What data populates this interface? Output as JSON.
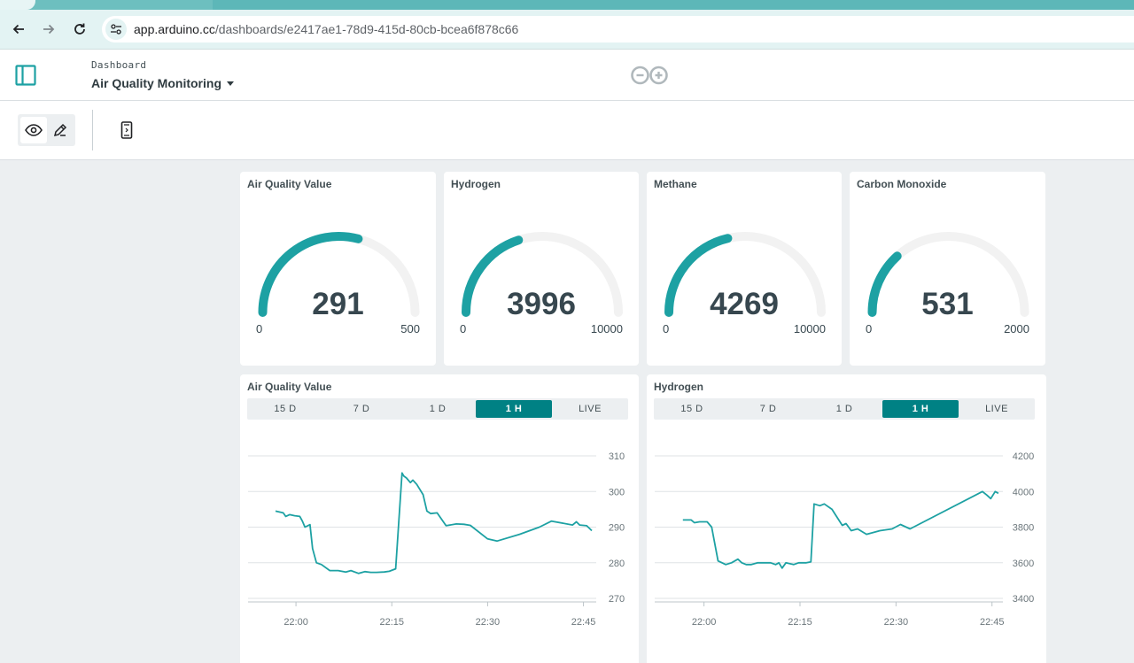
{
  "browser": {
    "url_host": "app.arduino.cc",
    "url_path": "/dashboards/e2417ae1-78d9-415d-80cb-bcea6f878c66"
  },
  "header": {
    "breadcrumb": "Dashboard",
    "title": "Air Quality Monitoring"
  },
  "colors": {
    "accent": "#1da1a3",
    "active_tab": "#008184",
    "track": "#f2f2f2"
  },
  "gauges": [
    {
      "title": "Air Quality Value",
      "value": "291",
      "min": "0",
      "max": "500",
      "numeric": 291,
      "lo": 0,
      "hi": 500
    },
    {
      "title": "Hydrogen",
      "value": "3996",
      "min": "0",
      "max": "10000",
      "numeric": 3996,
      "lo": 0,
      "hi": 10000
    },
    {
      "title": "Methane",
      "value": "4269",
      "min": "0",
      "max": "10000",
      "numeric": 4269,
      "lo": 0,
      "hi": 10000
    },
    {
      "title": "Carbon Monoxide",
      "value": "531",
      "min": "0",
      "max": "2000",
      "numeric": 531,
      "lo": 0,
      "hi": 2000
    }
  ],
  "charts": [
    {
      "title": "Air Quality Value",
      "tabs": [
        "15 D",
        "7 D",
        "1 D",
        "1 H",
        "LIVE"
      ],
      "active_tab": 3
    },
    {
      "title": "Hydrogen",
      "tabs": [
        "15 D",
        "7 D",
        "1 D",
        "1 H",
        "LIVE"
      ],
      "active_tab": 3
    }
  ],
  "chart_data": [
    {
      "type": "line",
      "title": "Air Quality Value",
      "x_ticks": [
        "22:00",
        "22:15",
        "22:30",
        "22:45"
      ],
      "x_tick_minutes": [
        0,
        15,
        30,
        45
      ],
      "y_ticks": [
        "270",
        "280",
        "290",
        "300",
        "310"
      ],
      "ylim": [
        270,
        310
      ],
      "xlim_minutes": [
        -7.5,
        47
      ],
      "grid": true,
      "series": [
        {
          "x": [
            -3.2,
            -2,
            -1.6,
            -1,
            -0.2,
            0.6,
            1,
            1.4,
            2.2,
            2.6,
            3.2,
            4,
            5.3,
            6.6,
            7.8,
            8.6,
            9.8,
            10.8,
            11.7,
            12.6,
            13.8,
            14.6,
            15.6,
            16.6,
            16.9,
            17.3,
            17.9,
            18.3,
            18.9,
            19.9,
            20.5,
            21.1,
            22.1,
            23.5,
            25.1,
            26.3,
            27.3,
            30,
            31.5,
            35,
            38.1,
            40,
            43.3,
            43.9,
            44.4,
            45.5,
            46.3
          ],
          "y": [
            294.5,
            294,
            293,
            293.5,
            293.2,
            293,
            291.7,
            290,
            290.7,
            284,
            280,
            279.5,
            277.8,
            277.8,
            277.4,
            277.8,
            277,
            277.5,
            277.3,
            277.3,
            277.4,
            277.6,
            278.3,
            305.2,
            304.3,
            303.8,
            302.5,
            303.2,
            302,
            299.1,
            294.5,
            293.8,
            294,
            290.4,
            290.9,
            290.8,
            290.5,
            286.7,
            286.1,
            288,
            290,
            291.7,
            290.6,
            291.5,
            290.6,
            290.4,
            289
          ]
        }
      ]
    },
    {
      "type": "line",
      "title": "Hydrogen",
      "x_ticks": [
        "22:00",
        "22:15",
        "22:30",
        "22:45"
      ],
      "x_tick_minutes": [
        0,
        15,
        30,
        45
      ],
      "y_ticks": [
        "3400",
        "3600",
        "3800",
        "4000",
        "4200"
      ],
      "ylim": [
        3400,
        4200
      ],
      "xlim_minutes": [
        -7.7,
        46.7
      ],
      "grid": true,
      "series": [
        {
          "x": [
            -3.3,
            -2,
            -1.5,
            -0.7,
            0.5,
            1.2,
            2.2,
            3.4,
            4.3,
            5.3,
            5.9,
            6.6,
            7.4,
            8.4,
            9.4,
            10.4,
            11.2,
            11.7,
            12.2,
            12.8,
            14,
            14.8,
            16,
            16.7,
            17.2,
            18.1,
            18.8,
            20,
            20.7,
            21.6,
            22.2,
            23,
            24,
            25.4,
            27.5,
            29.4,
            30.7,
            32.2,
            43.5,
            44.2,
            44.8,
            45.5,
            46
          ],
          "y": [
            3840,
            3840,
            3825,
            3830,
            3830,
            3800,
            3610,
            3590,
            3600,
            3620,
            3600,
            3590,
            3590,
            3600,
            3600,
            3600,
            3590,
            3600,
            3570,
            3600,
            3590,
            3600,
            3600,
            3605,
            3930,
            3920,
            3930,
            3900,
            3860,
            3810,
            3820,
            3780,
            3790,
            3760,
            3780,
            3790,
            3815,
            3790,
            4000,
            3980,
            3960,
            4000,
            3990
          ]
        }
      ]
    }
  ]
}
